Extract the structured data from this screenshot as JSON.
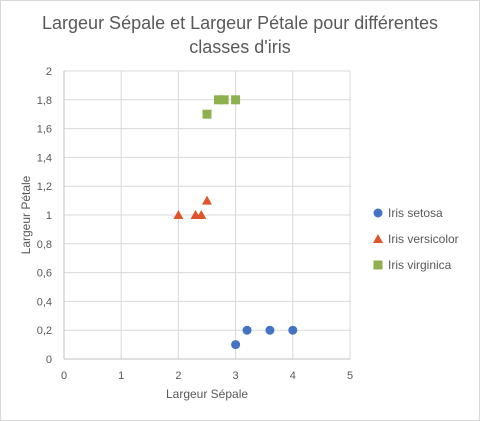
{
  "chart_data": {
    "type": "scatter",
    "title_lines": [
      "Largeur Sépale et Largeur Pétale pour différentes",
      "classes d'iris"
    ],
    "xlabel": "Largeur Sépale",
    "ylabel": "Largeur Pétale",
    "xlim": [
      0,
      5
    ],
    "ylim": [
      0,
      2
    ],
    "x_ticks": [
      "0",
      "1",
      "2",
      "3",
      "4",
      "5"
    ],
    "y_ticks": [
      "0",
      "0,2",
      "0,4",
      "0,6",
      "0,8",
      "1",
      "1,2",
      "1,4",
      "1,6",
      "1,8",
      "2"
    ],
    "grid": true,
    "legend_position": "right",
    "series": [
      {
        "name": "Iris setosa",
        "marker": "circle",
        "color": "#4472c4",
        "points": [
          [
            3.0,
            0.1
          ],
          [
            3.2,
            0.2
          ],
          [
            3.6,
            0.2
          ],
          [
            4.0,
            0.2
          ]
        ]
      },
      {
        "name": "Iris versicolor",
        "marker": "triangle",
        "color": "#e0542c",
        "points": [
          [
            2.0,
            1.0
          ],
          [
            2.3,
            1.0
          ],
          [
            2.4,
            1.0
          ],
          [
            2.5,
            1.1
          ]
        ]
      },
      {
        "name": "Iris virginica",
        "marker": "square",
        "color": "#8fb04e",
        "points": [
          [
            2.5,
            1.7
          ],
          [
            2.7,
            1.8
          ],
          [
            2.8,
            1.8
          ],
          [
            3.0,
            1.8
          ]
        ]
      }
    ]
  }
}
